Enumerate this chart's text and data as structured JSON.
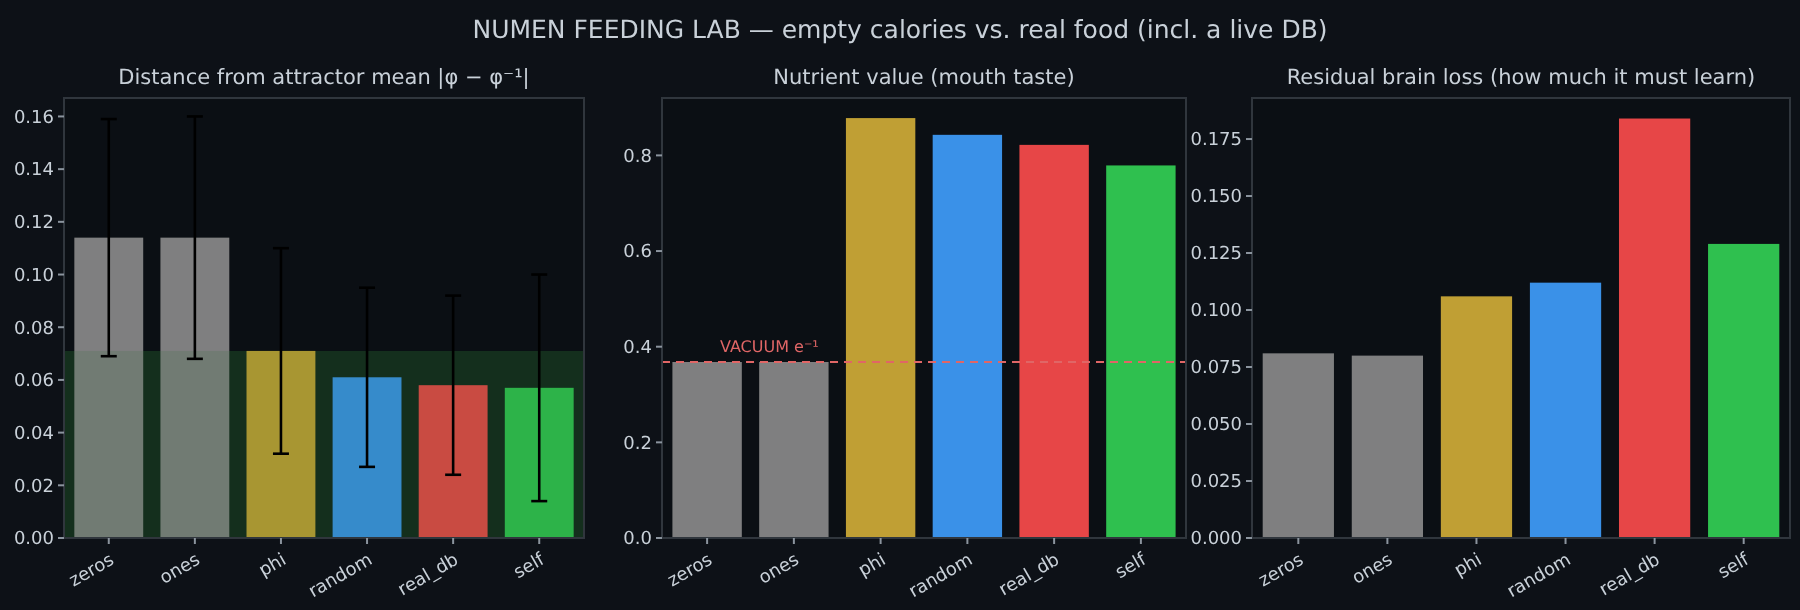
{
  "chart_data": [
    {
      "type": "other",
      "title": "NUMEN FEEDING LAB — empty calories vs. real food (incl. a live DB)"
    },
    {
      "type": "bar",
      "title": "Distance from attractor  mean |φ − φ⁻¹|",
      "categories": [
        "zeros",
        "ones",
        "phi",
        "random",
        "real_db",
        "self"
      ],
      "values": [
        0.114,
        0.114,
        0.071,
        0.061,
        0.058,
        0.057
      ],
      "errors": [
        0.045,
        0.046,
        0.039,
        0.034,
        0.034,
        0.043
      ],
      "colors": [
        "#8c8c8c",
        "#8c8c8c",
        "#d4af37",
        "#3fa0ff",
        "#ff4d4d",
        "#33d455"
      ],
      "bands": [
        {
          "axis": "y",
          "from": 0,
          "to": 0.071,
          "color": "#1f5a2a"
        }
      ],
      "ylim": [
        0,
        0.167
      ],
      "yticks": [
        {
          "value": 0,
          "label": "0.00"
        },
        {
          "value": 0.02,
          "label": "0.02"
        },
        {
          "value": 0.04,
          "label": "0.04"
        },
        {
          "value": 0.06,
          "label": "0.06"
        },
        {
          "value": 0.08,
          "label": "0.08"
        },
        {
          "value": 0.1,
          "label": "0.10"
        },
        {
          "value": 0.12,
          "label": "0.12"
        },
        {
          "value": 0.14,
          "label": "0.14"
        },
        {
          "value": 0.16,
          "label": "0.16"
        }
      ],
      "grid": false
    },
    {
      "type": "bar",
      "title": "Nutrient value (mouth taste)",
      "categories": [
        "zeros",
        "ones",
        "phi",
        "random",
        "real_db",
        "self"
      ],
      "values": [
        0.368,
        0.368,
        0.878,
        0.843,
        0.822,
        0.779
      ],
      "colors": [
        "#8c8c8c",
        "#8c8c8c",
        "#d4af37",
        "#3fa0ff",
        "#ff4d4d",
        "#33d455"
      ],
      "ref_lines": [
        {
          "axis": "y",
          "value": 0.368,
          "label": "VACUUM e⁻¹",
          "color": "#e06666",
          "line_style": "dashed"
        }
      ],
      "ylim": [
        0,
        0.92
      ],
      "yticks": [
        {
          "value": 0,
          "label": "0.0"
        },
        {
          "value": 0.2,
          "label": "0.2"
        },
        {
          "value": 0.4,
          "label": "0.4"
        },
        {
          "value": 0.6,
          "label": "0.6"
        },
        {
          "value": 0.8,
          "label": "0.8"
        }
      ],
      "grid": false
    },
    {
      "type": "bar",
      "title": "Residual brain loss (how much it must learn)",
      "categories": [
        "zeros",
        "ones",
        "phi",
        "random",
        "real_db",
        "self"
      ],
      "values": [
        0.081,
        0.08,
        0.106,
        0.112,
        0.184,
        0.129
      ],
      "colors": [
        "#8c8c8c",
        "#8c8c8c",
        "#d4af37",
        "#3fa0ff",
        "#ff4d4d",
        "#33d455"
      ],
      "ylim": [
        0,
        0.193
      ],
      "yticks": [
        {
          "value": 0,
          "label": "0.000"
        },
        {
          "value": 0.025,
          "label": "0.025"
        },
        {
          "value": 0.05,
          "label": "0.050"
        },
        {
          "value": 0.075,
          "label": "0.075"
        },
        {
          "value": 0.1,
          "label": "0.100"
        },
        {
          "value": 0.125,
          "label": "0.125"
        },
        {
          "value": 0.15,
          "label": "0.150"
        },
        {
          "value": 0.175,
          "label": "0.175"
        }
      ],
      "grid": false
    }
  ]
}
